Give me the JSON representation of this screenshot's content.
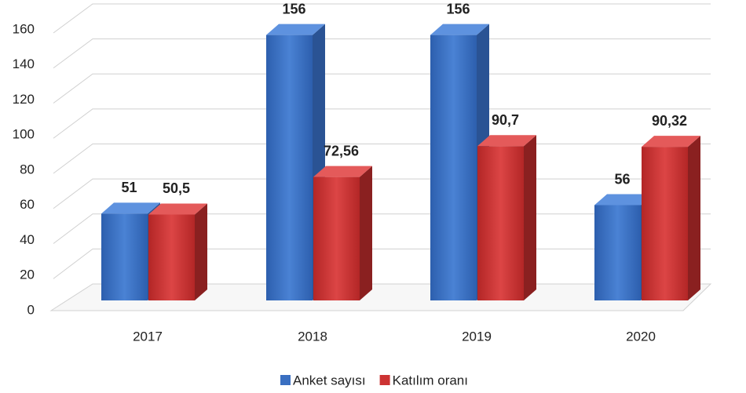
{
  "chart_data": {
    "type": "bar3d",
    "categories": [
      "2017",
      "2018",
      "2019",
      "2020"
    ],
    "series": [
      {
        "name": "Anket sayısı",
        "color": "#3a6fc1",
        "values": [
          51,
          156,
          156,
          56
        ],
        "value_labels": [
          "51",
          "156",
          "156",
          "56"
        ]
      },
      {
        "name": "Katılım oranı",
        "color": "#cc3333",
        "values": [
          50.5,
          72.56,
          90.7,
          90.32
        ],
        "value_labels": [
          "50,5",
          "72,56",
          "90,7",
          "90,32"
        ]
      }
    ],
    "ylim": [
      0,
      160
    ],
    "yticks": [
      0,
      20,
      40,
      60,
      80,
      100,
      120,
      140,
      160
    ],
    "grid": true,
    "legend": "bottom"
  }
}
